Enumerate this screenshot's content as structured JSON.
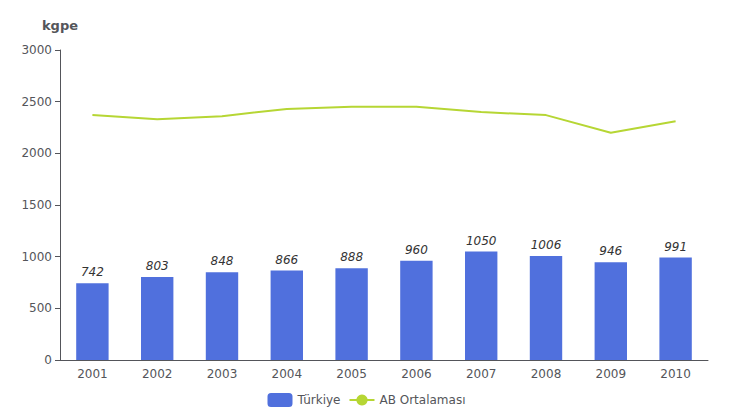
{
  "chart_data": {
    "type": "bar",
    "ylabel": "kgpe",
    "categories": [
      "2001",
      "2002",
      "2003",
      "2004",
      "2005",
      "2006",
      "2007",
      "2008",
      "2009",
      "2010"
    ],
    "series": [
      {
        "name": "Türkiye",
        "type": "bar",
        "data_labels": true,
        "values": [
          742,
          803,
          848,
          866,
          888,
          960,
          1050,
          1006,
          946,
          991
        ]
      },
      {
        "name": "AB Ortalaması",
        "type": "line",
        "data_labels": false,
        "values": [
          2370,
          2330,
          2360,
          2430,
          2450,
          2450,
          2400,
          2370,
          2200,
          2310
        ]
      }
    ],
    "ylim": [
      0,
      3000
    ],
    "yticks": [
      0,
      500,
      1000,
      1500,
      2000,
      2500,
      3000
    ],
    "grid": false,
    "legend": "bottom"
  }
}
